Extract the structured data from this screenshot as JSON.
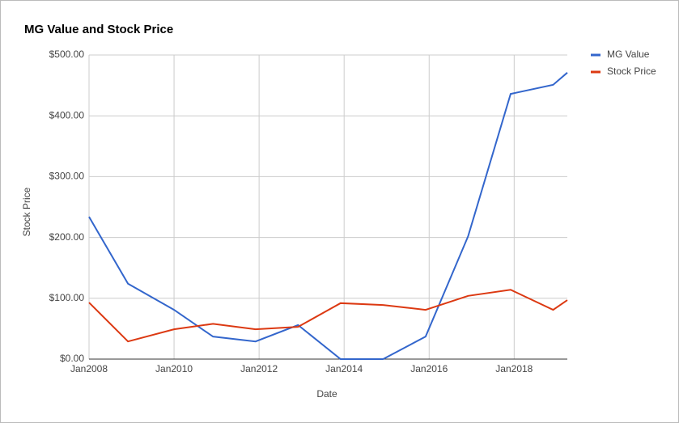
{
  "chart_data": {
    "type": "line",
    "title": "MG Value and Stock Price",
    "x_label": "Date",
    "y_label": "Stock Price",
    "x": [
      "2008-01",
      "2008-12",
      "2010-01",
      "2010-12",
      "2011-12",
      "2012-12",
      "2013-12",
      "2014-12",
      "2015-12",
      "2016-12",
      "2017-12",
      "2018-12",
      "2019-04"
    ],
    "series": [
      {
        "name": "MG Value",
        "color": "#3366cc",
        "values": [
          234,
          124,
          81,
          37,
          29,
          56,
          0,
          0,
          37,
          202,
          436,
          451,
          471
        ]
      },
      {
        "name": "Stock Price",
        "color": "#dc3912",
        "values": [
          93,
          29,
          49,
          58,
          49,
          53,
          92,
          89,
          81,
          104,
          114,
          81,
          97
        ]
      }
    ],
    "xlim": [
      "2008-01",
      "2019-04"
    ],
    "xticks": [
      {
        "value": "2008-01",
        "label": "Jan2008"
      },
      {
        "value": "2010-01",
        "label": "Jan2010"
      },
      {
        "value": "2012-01",
        "label": "Jan2012"
      },
      {
        "value": "2014-01",
        "label": "Jan2014"
      },
      {
        "value": "2016-01",
        "label": "Jan2016"
      },
      {
        "value": "2018-01",
        "label": "Jan2018"
      }
    ],
    "ylim": [
      0,
      500
    ],
    "yticks": [
      {
        "value": 0,
        "label": "$0.00"
      },
      {
        "value": 100,
        "label": "$100.00"
      },
      {
        "value": 200,
        "label": "$200.00"
      },
      {
        "value": 300,
        "label": "$300.00"
      },
      {
        "value": 400,
        "label": "$400.00"
      },
      {
        "value": 500,
        "label": "$500.00"
      }
    ],
    "grid": true,
    "legend": "right"
  }
}
